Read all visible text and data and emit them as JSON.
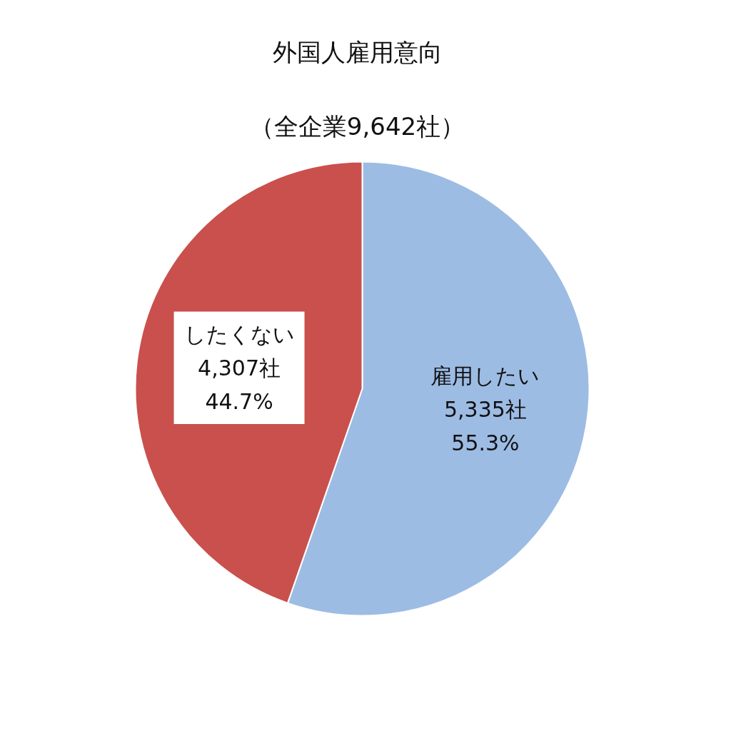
{
  "chart_data": {
    "type": "pie",
    "title": "外国人雇用意向",
    "subtitle": "（全企業9,642社）",
    "categories": [
      "雇用したい",
      "したくない"
    ],
    "values": [
      5335,
      4307
    ],
    "value_labels": [
      "5,335社\n55.3%",
      "4,307社\n44.7%"
    ],
    "colors": [
      "#9dbce4",
      "#c9504c"
    ]
  }
}
